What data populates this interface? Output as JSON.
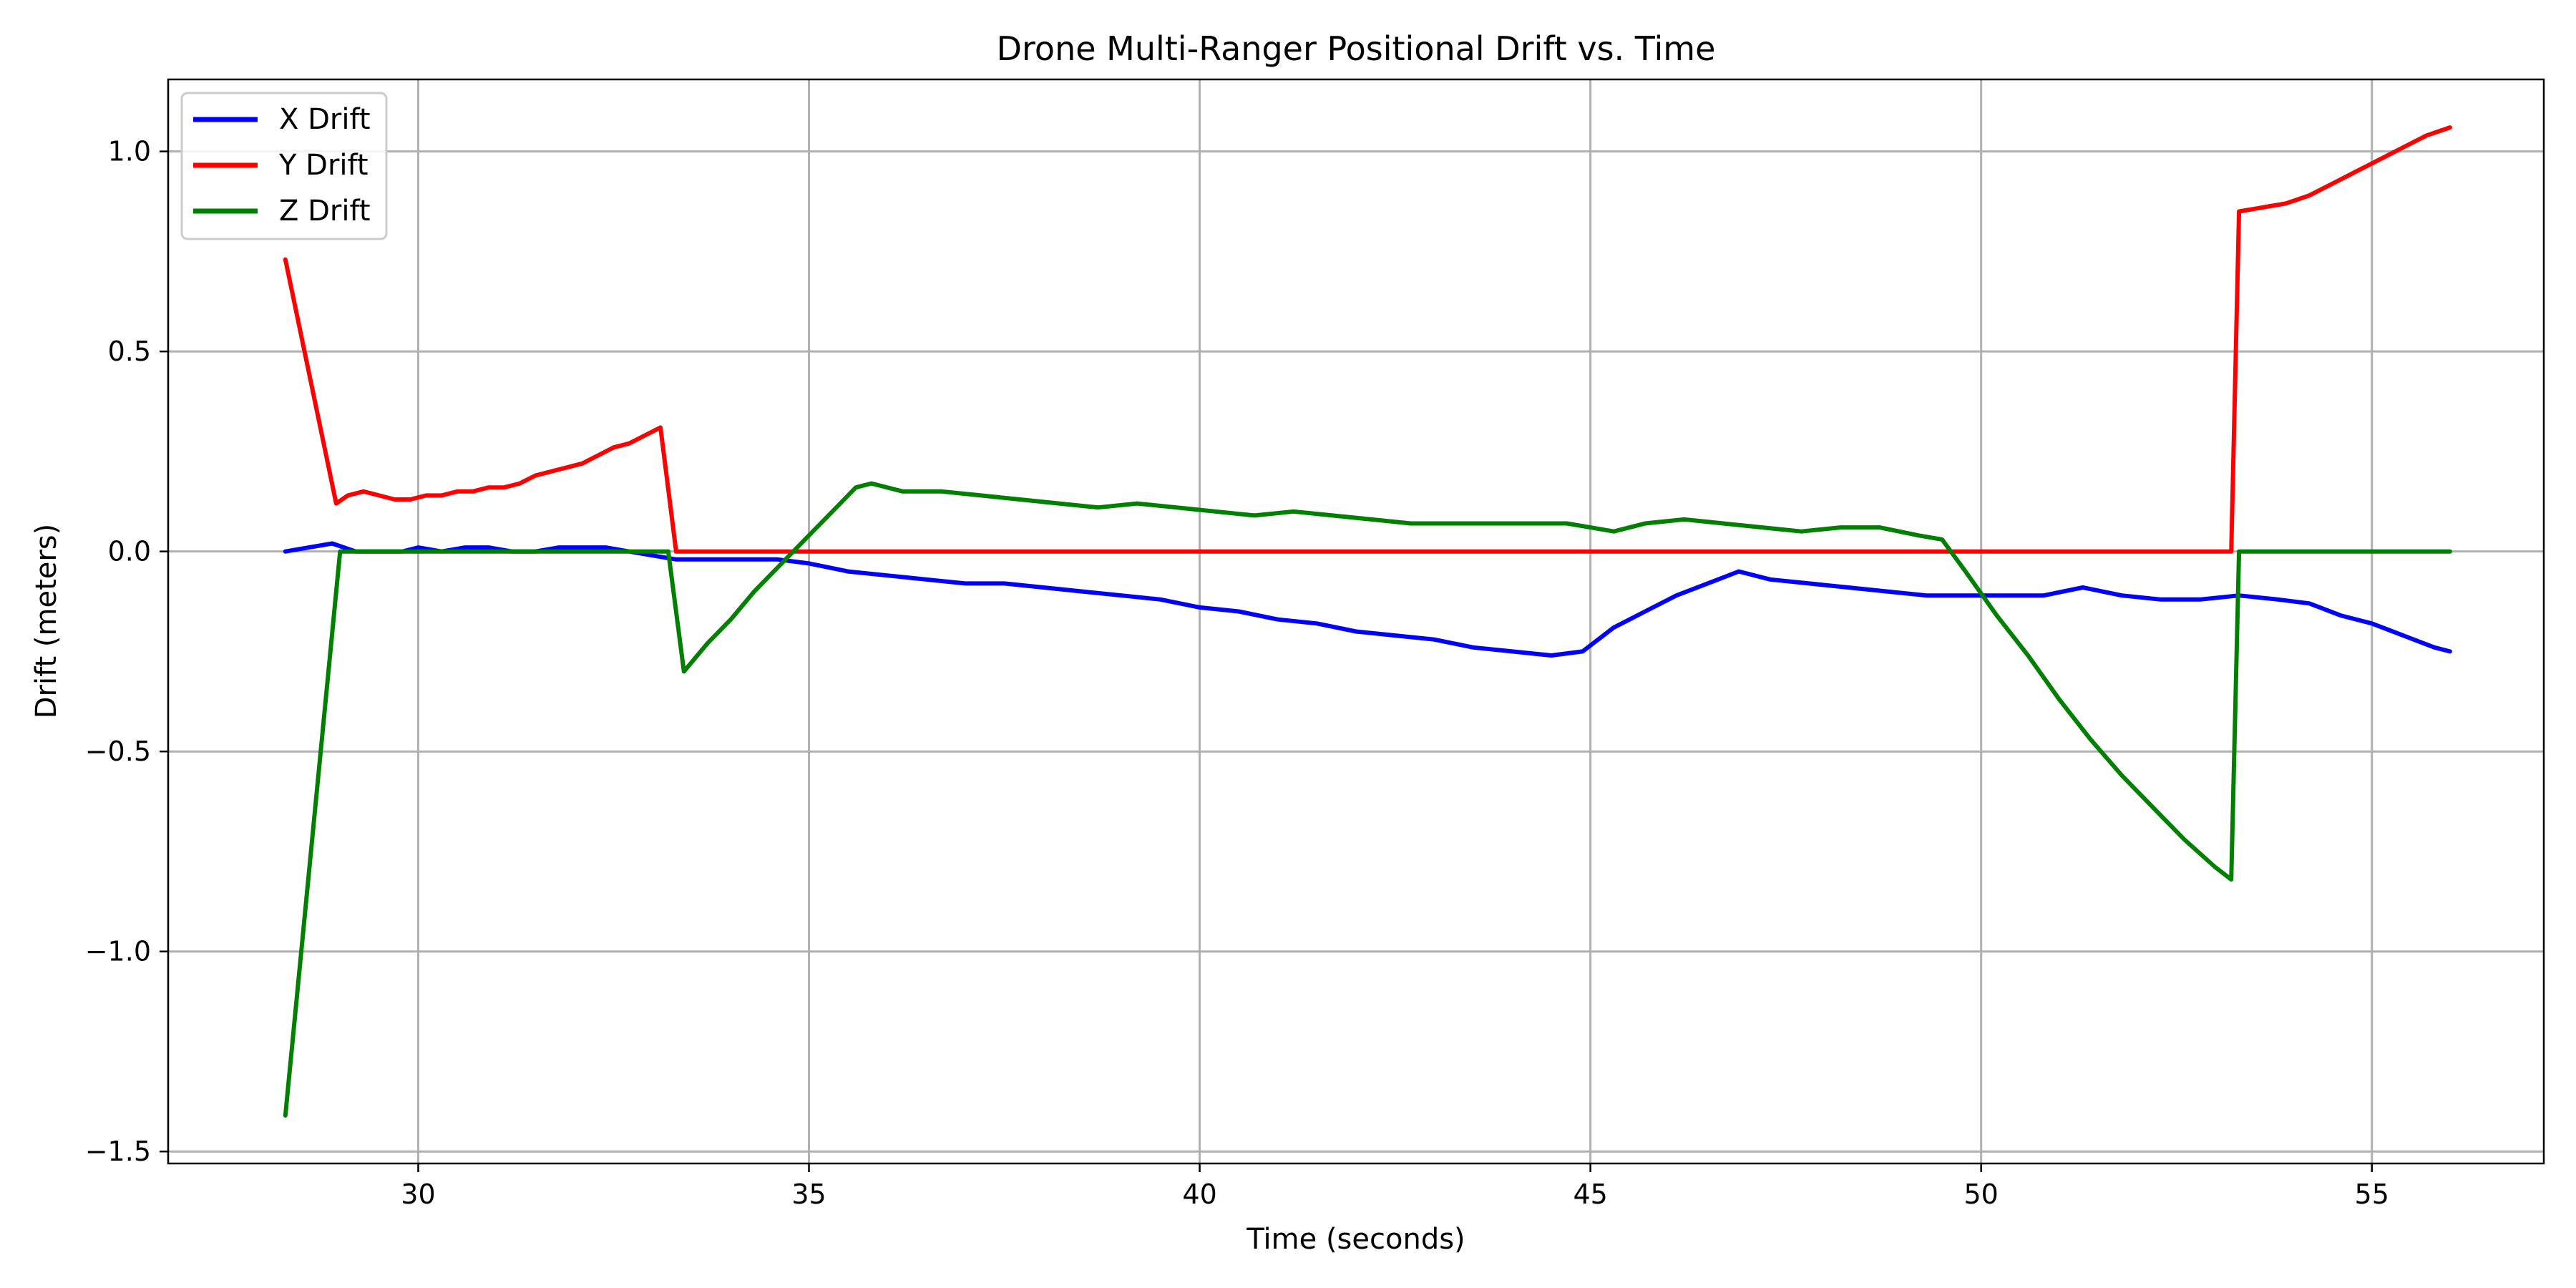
{
  "chart_data": {
    "type": "line",
    "title": "Drone Multi-Ranger Positional Drift vs. Time",
    "xlabel": "Time (seconds)",
    "ylabel": "Drift (meters)",
    "xlim": [
      26.8,
      57.2
    ],
    "ylim": [
      -1.53,
      1.18
    ],
    "xticks": [
      30,
      35,
      40,
      45,
      50,
      55
    ],
    "xtick_labels": [
      "30",
      "35",
      "40",
      "45",
      "50",
      "55"
    ],
    "yticks": [
      -1.5,
      -1.0,
      -0.5,
      0.0,
      0.5,
      1.0
    ],
    "ytick_labels": [
      "−1.5",
      "−1.0",
      "−0.5",
      "0.0",
      "0.5",
      "1.0"
    ],
    "grid": true,
    "legend_position": "top-left",
    "series": [
      {
        "name": "X Drift",
        "color": "#0000ff",
        "x": [
          28.3,
          28.6,
          28.9,
          29.2,
          29.5,
          29.8,
          30.0,
          30.3,
          30.6,
          30.9,
          31.2,
          31.5,
          31.8,
          32.1,
          32.4,
          32.7,
          33.0,
          33.3,
          34.0,
          34.6,
          35.0,
          35.5,
          36.0,
          36.5,
          37.0,
          37.5,
          38.0,
          38.5,
          39.0,
          39.5,
          40.0,
          40.5,
          41.0,
          41.5,
          42.0,
          42.5,
          43.0,
          43.5,
          44.0,
          44.5,
          44.9,
          45.3,
          45.7,
          46.1,
          46.5,
          46.9,
          47.3,
          47.8,
          48.3,
          48.8,
          49.3,
          49.8,
          50.3,
          50.8,
          51.3,
          51.8,
          52.3,
          52.8,
          53.3,
          53.8,
          54.2,
          54.6,
          55.0,
          55.4,
          55.8,
          56.0
        ],
        "values": [
          0.0,
          0.01,
          0.02,
          0.0,
          0.0,
          0.0,
          0.01,
          0.0,
          0.01,
          0.01,
          0.0,
          0.0,
          0.01,
          0.01,
          0.01,
          0.0,
          -0.01,
          -0.02,
          -0.02,
          -0.02,
          -0.03,
          -0.05,
          -0.06,
          -0.07,
          -0.08,
          -0.08,
          -0.09,
          -0.1,
          -0.11,
          -0.12,
          -0.14,
          -0.15,
          -0.17,
          -0.18,
          -0.2,
          -0.21,
          -0.22,
          -0.24,
          -0.25,
          -0.26,
          -0.25,
          -0.19,
          -0.15,
          -0.11,
          -0.08,
          -0.05,
          -0.07,
          -0.08,
          -0.09,
          -0.1,
          -0.11,
          -0.11,
          -0.11,
          -0.11,
          -0.09,
          -0.11,
          -0.12,
          -0.12,
          -0.11,
          -0.12,
          -0.13,
          -0.16,
          -0.18,
          -0.21,
          -0.24,
          -0.25
        ]
      },
      {
        "name": "Y Drift",
        "color": "#ff0000",
        "x": [
          28.3,
          28.95,
          29.1,
          29.3,
          29.5,
          29.7,
          29.9,
          30.1,
          30.3,
          30.5,
          30.7,
          30.9,
          31.1,
          31.3,
          31.5,
          31.7,
          31.9,
          32.1,
          32.3,
          32.5,
          32.7,
          32.9,
          33.1,
          33.3,
          34.0,
          36.0,
          40.0,
          45.0,
          50.0,
          53.2,
          53.3,
          53.6,
          53.9,
          54.2,
          54.5,
          54.8,
          55.1,
          55.4,
          55.7,
          56.0
        ],
        "values": [
          0.73,
          0.12,
          0.14,
          0.15,
          0.14,
          0.13,
          0.13,
          0.14,
          0.14,
          0.15,
          0.15,
          0.16,
          0.16,
          0.17,
          0.19,
          0.2,
          0.21,
          0.22,
          0.24,
          0.26,
          0.27,
          0.29,
          0.31,
          0.0,
          0.0,
          0.0,
          0.0,
          0.0,
          0.0,
          0.0,
          0.85,
          0.86,
          0.87,
          0.89,
          0.92,
          0.95,
          0.98,
          1.01,
          1.04,
          1.06
        ]
      },
      {
        "name": "Z Drift",
        "color": "#008000",
        "x": [
          28.3,
          29.0,
          29.5,
          30.0,
          31.0,
          32.0,
          33.2,
          33.4,
          33.7,
          34.0,
          34.3,
          34.7,
          35.0,
          35.3,
          35.6,
          35.8,
          36.2,
          36.7,
          37.2,
          37.7,
          38.2,
          38.7,
          39.2,
          39.7,
          40.2,
          40.7,
          41.2,
          41.7,
          42.2,
          42.7,
          43.2,
          43.7,
          44.2,
          44.7,
          45.0,
          45.3,
          45.7,
          46.2,
          46.7,
          47.2,
          47.7,
          48.2,
          48.7,
          49.2,
          49.5,
          49.8,
          50.2,
          50.6,
          51.0,
          51.4,
          51.8,
          52.2,
          52.6,
          53.0,
          53.2,
          53.3,
          54.0,
          55.0,
          56.0
        ],
        "values": [
          -1.41,
          0.0,
          0.0,
          0.0,
          0.0,
          0.0,
          0.0,
          -0.3,
          -0.23,
          -0.17,
          -0.1,
          -0.02,
          0.04,
          0.1,
          0.16,
          0.17,
          0.15,
          0.15,
          0.14,
          0.13,
          0.12,
          0.11,
          0.12,
          0.11,
          0.1,
          0.09,
          0.1,
          0.09,
          0.08,
          0.07,
          0.07,
          0.07,
          0.07,
          0.07,
          0.06,
          0.05,
          0.07,
          0.08,
          0.07,
          0.06,
          0.05,
          0.06,
          0.06,
          0.04,
          0.03,
          -0.05,
          -0.16,
          -0.26,
          -0.37,
          -0.47,
          -0.56,
          -0.64,
          -0.72,
          -0.79,
          -0.82,
          0.0,
          0.0,
          0.0,
          0.0
        ]
      }
    ]
  }
}
